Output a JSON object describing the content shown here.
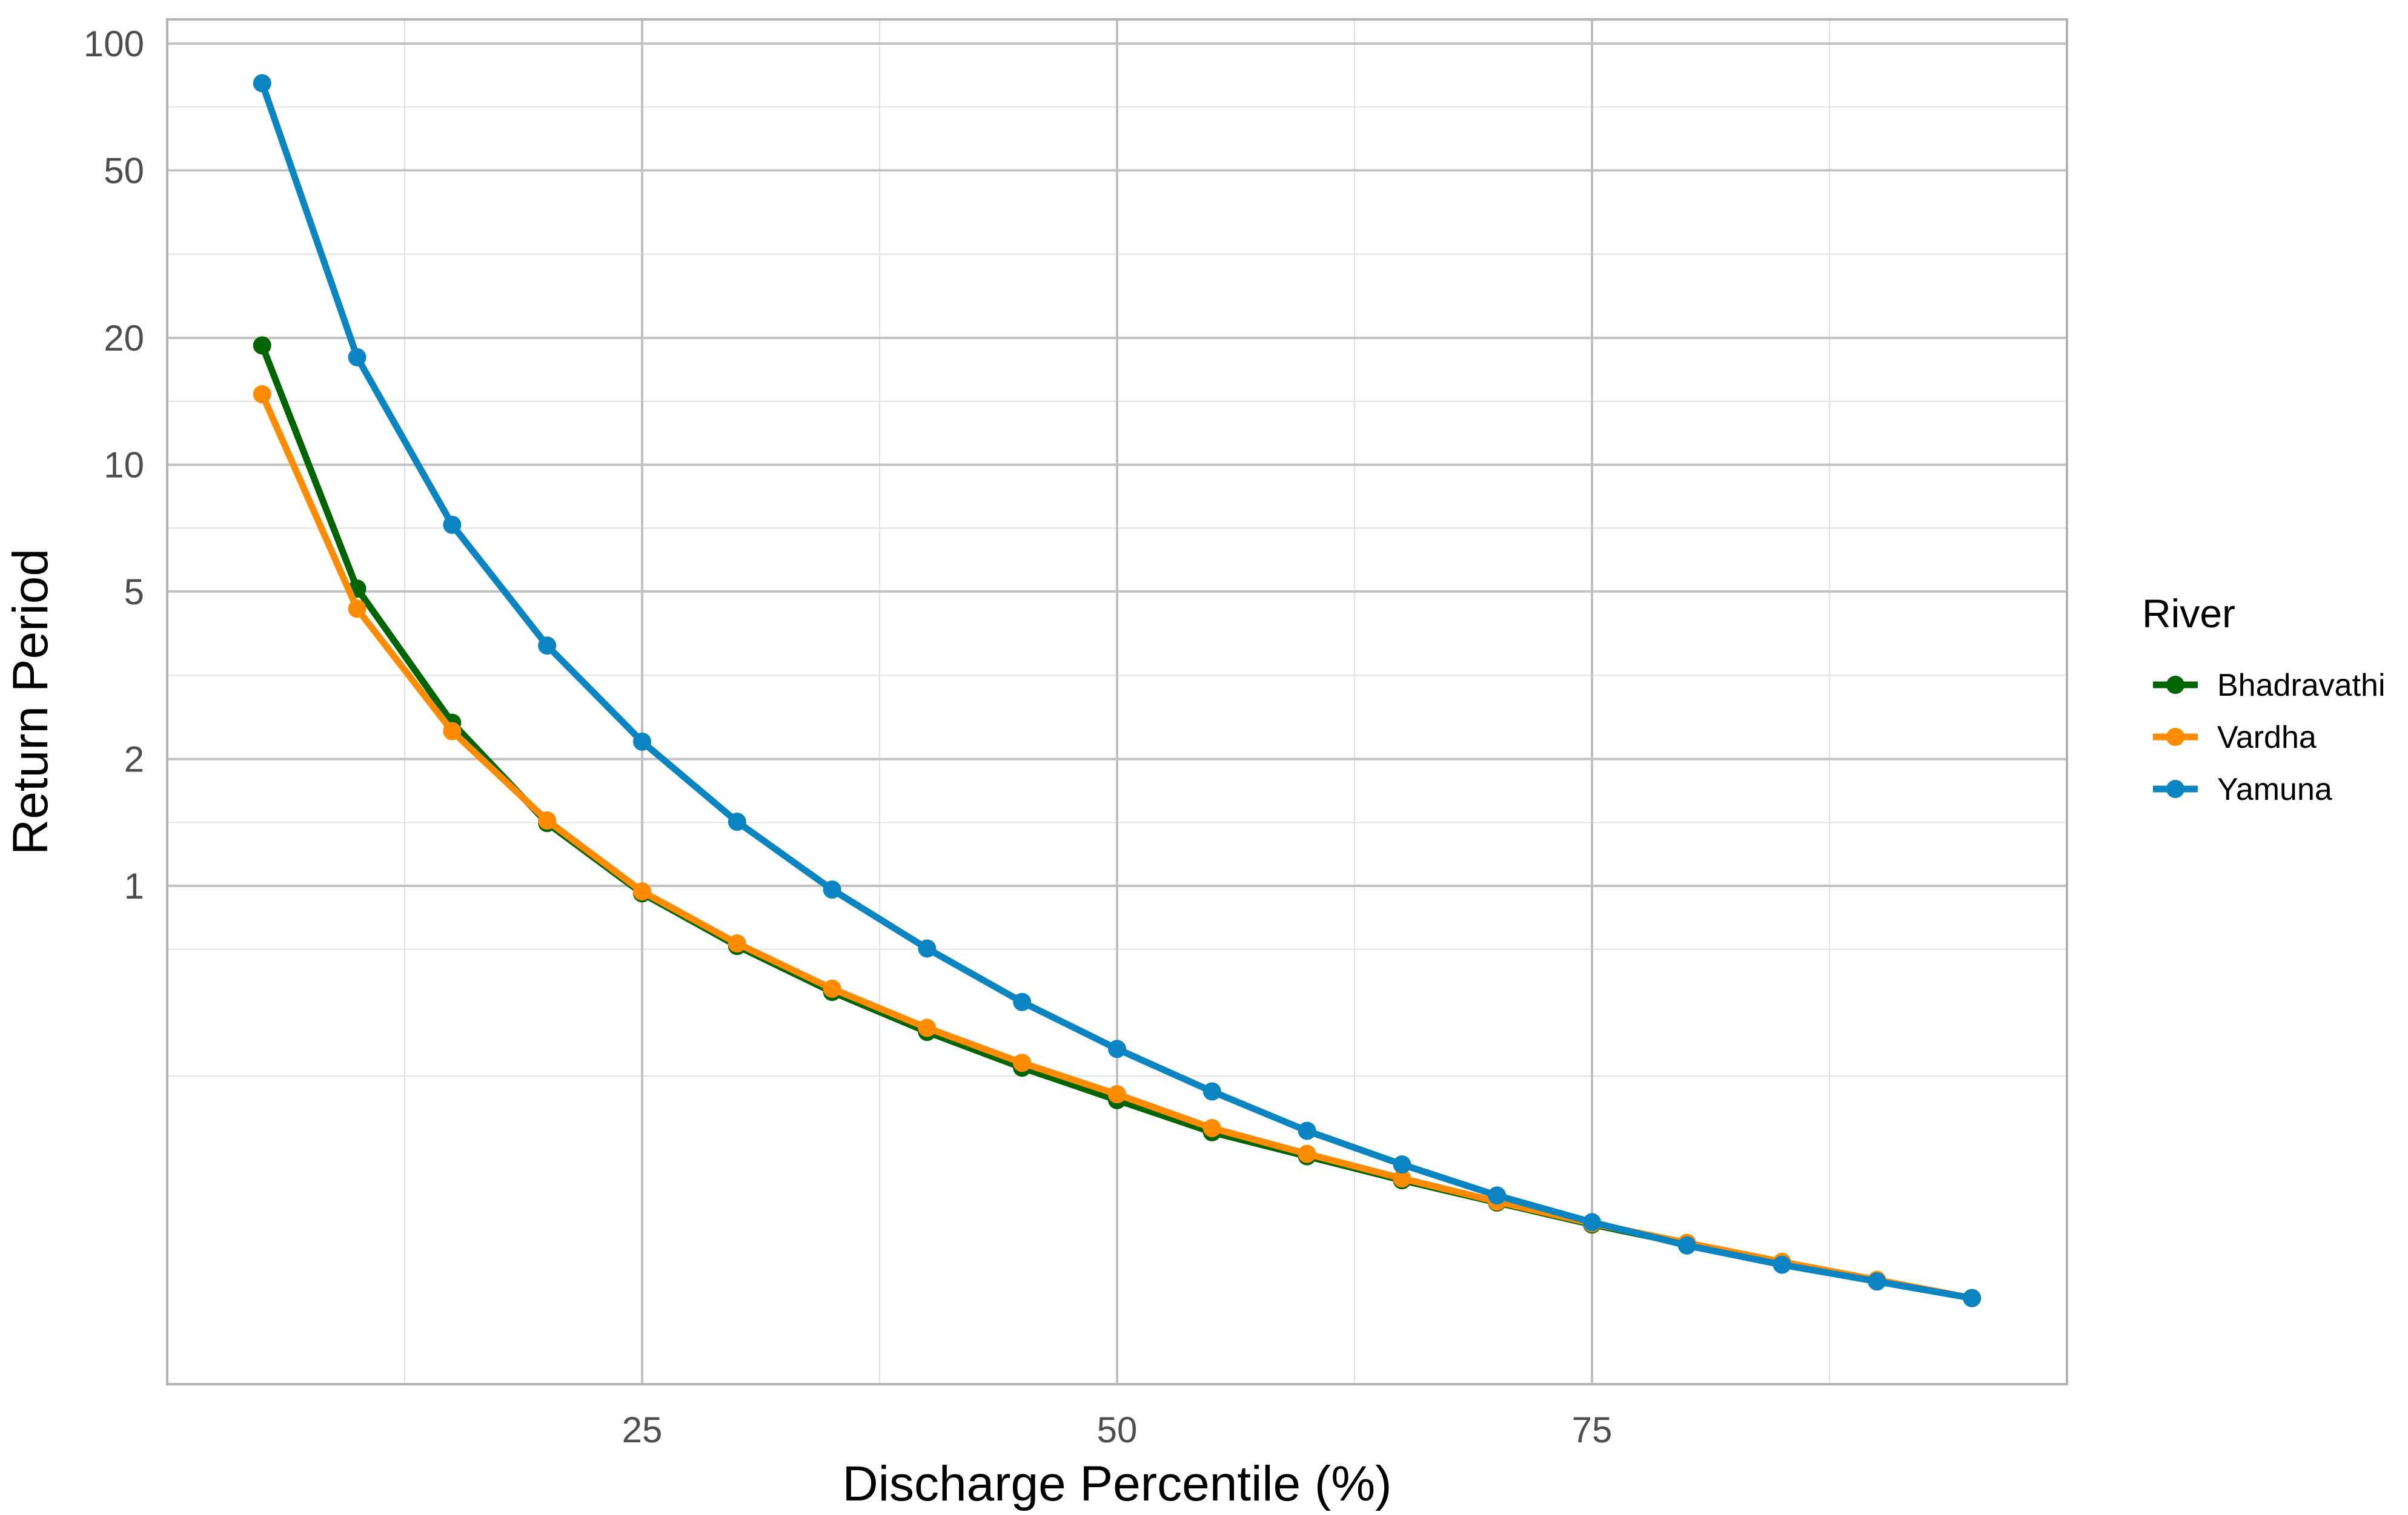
{
  "chart_data": {
    "type": "line",
    "title": "",
    "xlabel": "Discharge Percentile (%)",
    "ylabel": "Return Period",
    "y_scale": "log",
    "xlim": [
      0,
      100
    ],
    "ylim": [
      0.1,
      100
    ],
    "x_ticks": [
      25,
      50,
      75
    ],
    "y_ticks": [
      1,
      2,
      5,
      10,
      20,
      50,
      100
    ],
    "grid": true,
    "legend": {
      "title": "River",
      "position": "right"
    },
    "x": [
      5,
      10,
      15,
      20,
      25,
      30,
      35,
      40,
      45,
      50,
      55,
      60,
      65,
      70,
      75,
      80,
      85,
      90,
      95
    ],
    "series": [
      {
        "name": "Bhadravathi",
        "color": "#006400",
        "values": [
          19.2,
          5.08,
          2.44,
          1.41,
          0.96,
          0.72,
          0.56,
          0.45,
          0.37,
          0.31,
          0.26,
          0.228,
          0.2,
          0.177,
          0.157,
          0.141,
          0.127,
          0.115,
          0.105
        ]
      },
      {
        "name": "Vardha",
        "color": "#FF8C00",
        "values": [
          14.7,
          4.55,
          2.33,
          1.43,
          0.97,
          0.73,
          0.57,
          0.46,
          0.38,
          0.32,
          0.266,
          0.231,
          0.202,
          0.178,
          0.158,
          0.142,
          0.128,
          0.116,
          0.105
        ]
      },
      {
        "name": "Yamuna",
        "color": "#0A85C2",
        "values": [
          80.5,
          18.0,
          7.2,
          3.72,
          2.2,
          1.42,
          0.98,
          0.71,
          0.53,
          0.41,
          0.325,
          0.262,
          0.218,
          0.184,
          0.159,
          0.14,
          0.126,
          0.115,
          0.105
        ]
      }
    ]
  }
}
